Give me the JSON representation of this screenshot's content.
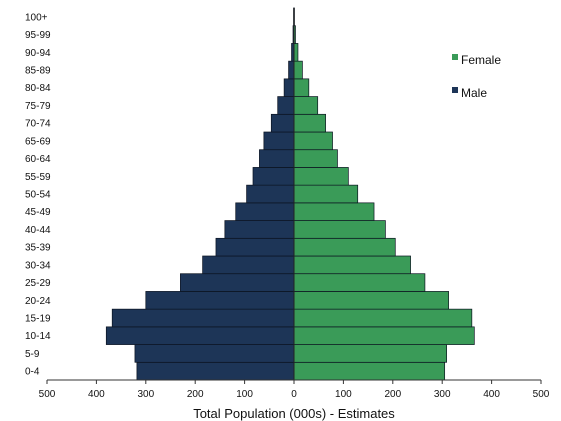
{
  "chart_data": {
    "type": "bar",
    "orientation": "horizontal-population-pyramid",
    "title": "",
    "xlabel": "Total Population (000s) - Estimates",
    "ylabel": "",
    "xlim": [
      -500,
      500
    ],
    "x_ticks": [
      -500,
      -400,
      -300,
      -200,
      -100,
      0,
      100,
      200,
      300,
      400,
      500
    ],
    "x_tick_labels": [
      "500",
      "400",
      "300",
      "200",
      "100",
      "0",
      "100",
      "200",
      "300",
      "400",
      "500"
    ],
    "grid": false,
    "legend_position": "top-right",
    "categories": [
      "0-4",
      "5-9",
      "10-14",
      "15-19",
      "20-24",
      "25-29",
      "30-34",
      "35-39",
      "40-44",
      "45-49",
      "50-54",
      "55-59",
      "60-64",
      "65-69",
      "70-74",
      "75-79",
      "80-84",
      "85-89",
      "90-94",
      "95-99",
      "100+"
    ],
    "series": [
      {
        "name": "Female",
        "side": "right",
        "color": "#3a9b58",
        "values": [
          305,
          309,
          365,
          360,
          313,
          265,
          236,
          205,
          185,
          162,
          129,
          110,
          88,
          78,
          64,
          48,
          30,
          17,
          8,
          3,
          1
        ]
      },
      {
        "name": "Male",
        "side": "left",
        "color": "#1d3557",
        "values": [
          318,
          322,
          380,
          368,
          300,
          230,
          185,
          158,
          140,
          118,
          96,
          83,
          70,
          61,
          46,
          33,
          20,
          11,
          5,
          2,
          1
        ]
      }
    ]
  }
}
